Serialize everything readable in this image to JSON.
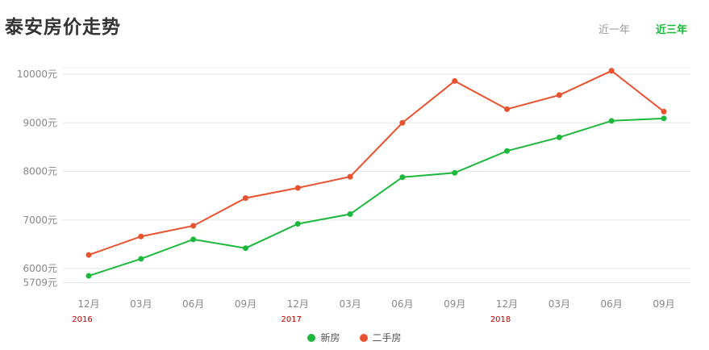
{
  "page": {
    "title": "泰安房价走势"
  },
  "range_tabs": [
    {
      "label": "近一年",
      "active": false
    },
    {
      "label": "近三年",
      "active": true
    }
  ],
  "colors": {
    "new": "#1cb83b",
    "second": "#e8522f",
    "active_tab": "#1cb83b",
    "inactive_tab": "#999999",
    "year_label": "#c00000"
  },
  "chart_data": {
    "type": "line",
    "title": "泰安房价走势",
    "categories": [
      "12月",
      "03月",
      "06月",
      "09月",
      "12月",
      "03月",
      "06月",
      "09月",
      "12月",
      "03月",
      "06月",
      "09月"
    ],
    "year_labels": [
      {
        "index": 0,
        "label": "2016"
      },
      {
        "index": 4,
        "label": "2017"
      },
      {
        "index": 8,
        "label": "2018"
      }
    ],
    "y_ticks": [
      "10000元",
      "9000元",
      "8000元",
      "7000元",
      "6000元",
      "5709元"
    ],
    "y_tick_values": [
      10000,
      9000,
      8000,
      7000,
      6000,
      5709
    ],
    "ylim": [
      5709,
      10100
    ],
    "series": [
      {
        "name": "新房",
        "color": "#1cb83b",
        "values": [
          5850,
          6200,
          6600,
          6420,
          6920,
          7120,
          7880,
          7970,
          8420,
          8700,
          9040,
          9090
        ]
      },
      {
        "name": "二手房",
        "color": "#e8522f",
        "values": [
          6280,
          6660,
          6880,
          7450,
          7660,
          7890,
          9000,
          9860,
          9280,
          9570,
          10070,
          9230
        ]
      }
    ],
    "grid": true,
    "legend_position": "bottom"
  }
}
